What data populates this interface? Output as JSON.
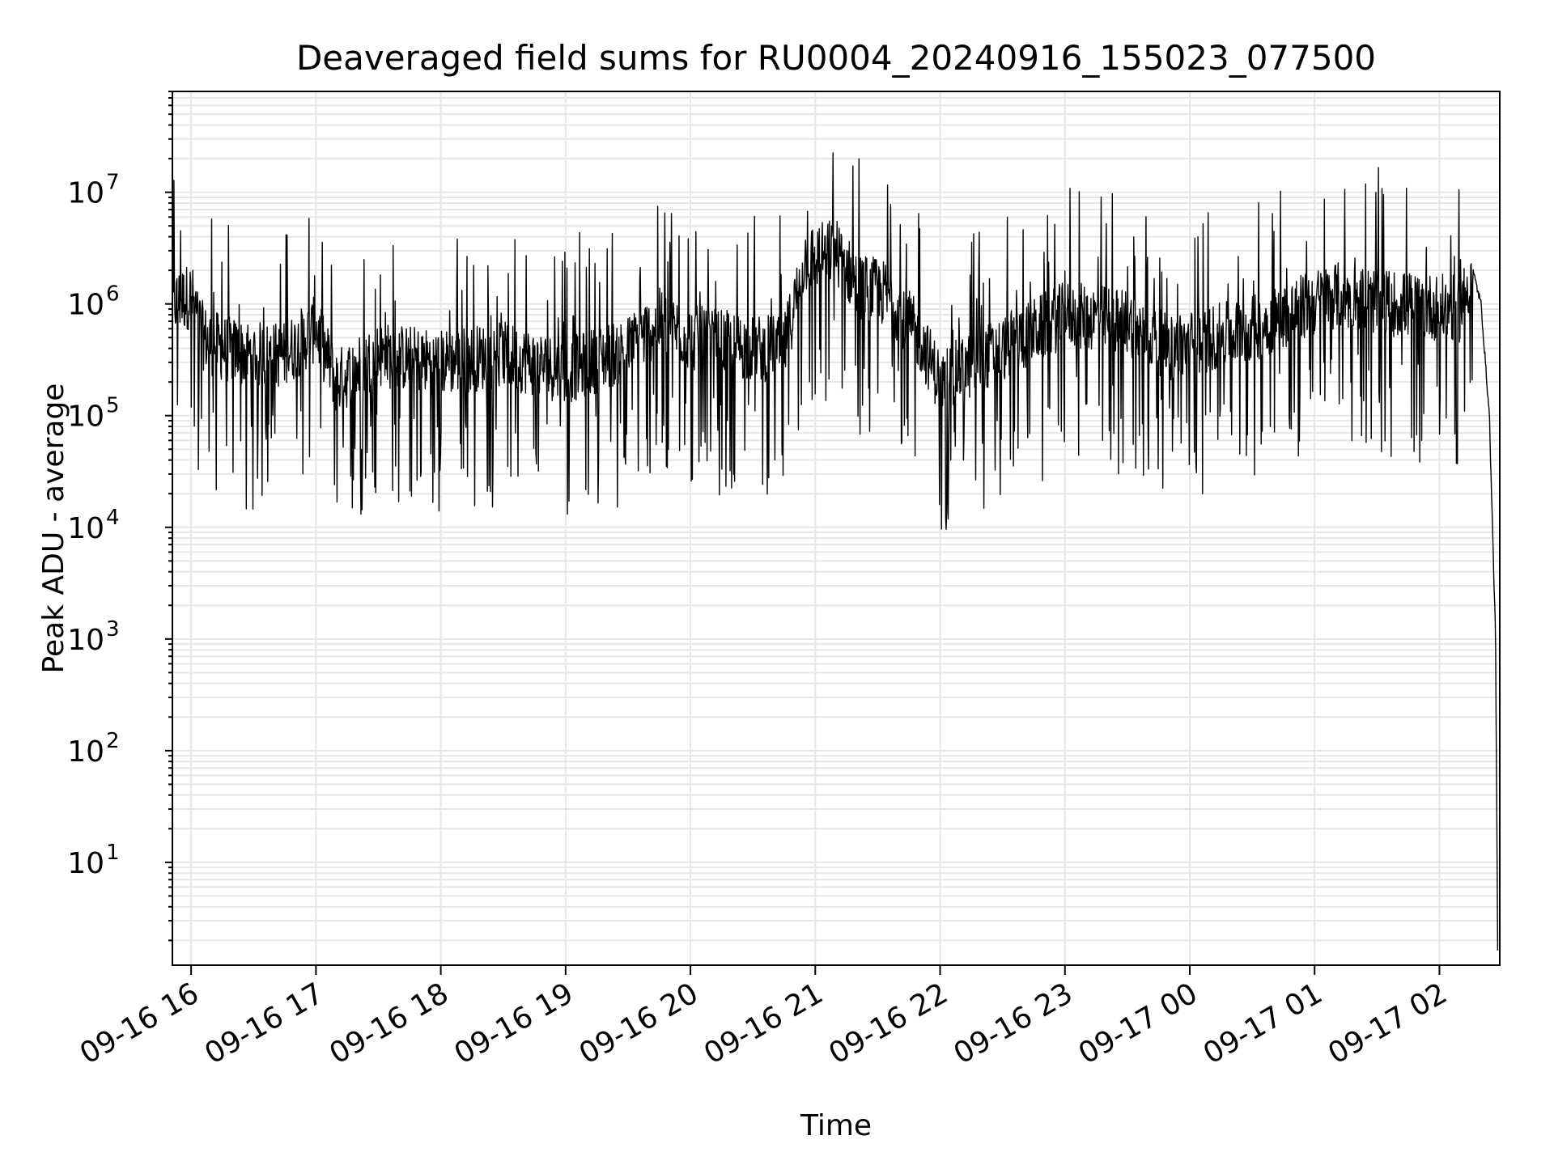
{
  "chart_data": {
    "type": "line",
    "title": "Deaveraged field sums for RU0004_20240916_155023_077500",
    "xlabel": "Time",
    "ylabel": "Peak ADU - average",
    "y_scale": "log",
    "ylim": [
      1.2,
      80000000
    ],
    "xlim": [
      "2024-09-16 15:51",
      "2024-09-17 02:29"
    ],
    "grid": true,
    "x_tick_labels": [
      "09-16 16",
      "09-16 17",
      "09-16 18",
      "09-16 19",
      "09-16 20",
      "09-16 21",
      "09-16 22",
      "09-16 23",
      "09-17 00",
      "09-17 01",
      "09-17 02"
    ],
    "x_tick_values": [
      "2024-09-16 16:00",
      "2024-09-16 17:00",
      "2024-09-16 18:00",
      "2024-09-16 19:00",
      "2024-09-16 20:00",
      "2024-09-16 21:00",
      "2024-09-16 22:00",
      "2024-09-16 23:00",
      "2024-09-17 00:00",
      "2024-09-17 01:00",
      "2024-09-17 02:00"
    ],
    "y_tick_labels": [
      {
        "base": "10",
        "exp": "1",
        "value": 10
      },
      {
        "base": "10",
        "exp": "2",
        "value": 100
      },
      {
        "base": "10",
        "exp": "3",
        "value": 1000
      },
      {
        "base": "10",
        "exp": "4",
        "value": 10000
      },
      {
        "base": "10",
        "exp": "5",
        "value": 100000
      },
      {
        "base": "10",
        "exp": "6",
        "value": 1000000
      },
      {
        "base": "10",
        "exp": "7",
        "value": 10000000
      }
    ],
    "line_color": "#000000",
    "grid_color": "#e6e6e6",
    "series": [
      {
        "x": [
          "2024-09-16 15:51",
          "2024-09-16 16:00",
          "2024-09-16 16:06",
          "2024-09-16 16:15",
          "2024-09-16 16:30",
          "2024-09-16 16:45",
          "2024-09-16 17:00",
          "2024-09-16 17:10",
          "2024-09-16 17:30",
          "2024-09-16 18:00",
          "2024-09-16 18:30",
          "2024-09-16 19:00",
          "2024-09-16 19:30",
          "2024-09-16 19:45",
          "2024-09-16 20:00",
          "2024-09-16 20:30",
          "2024-09-16 20:45",
          "2024-09-16 20:55",
          "2024-09-16 21:10",
          "2024-09-16 21:20",
          "2024-09-16 21:35",
          "2024-09-16 21:50",
          "2024-09-16 22:00",
          "2024-09-16 22:30",
          "2024-09-16 23:00",
          "2024-09-16 23:30",
          "2024-09-16 23:50",
          "2024-09-17 00:30",
          "2024-09-17 00:58",
          "2024-09-17 01:10",
          "2024-09-17 01:40",
          "2024-09-17 02:10",
          "2024-09-17 02:16",
          "2024-09-17 02:20",
          "2024-09-17 02:24",
          "2024-09-17 02:27",
          "2024-09-17 02:28"
        ],
        "y": [
          1000000,
          1200000,
          500000,
          400000,
          350000,
          350000,
          600000,
          200000,
          350000,
          300000,
          350000,
          250000,
          400000,
          700000,
          500000,
          400000,
          400000,
          2500000,
          3000000,
          1500000,
          1200000,
          500000,
          200000,
          400000,
          800000,
          700000,
          400000,
          600000,
          1000000,
          1200000,
          1000000,
          900000,
          2000000,
          1000000,
          100000,
          1000,
          1.5
        ]
      }
    ]
  }
}
